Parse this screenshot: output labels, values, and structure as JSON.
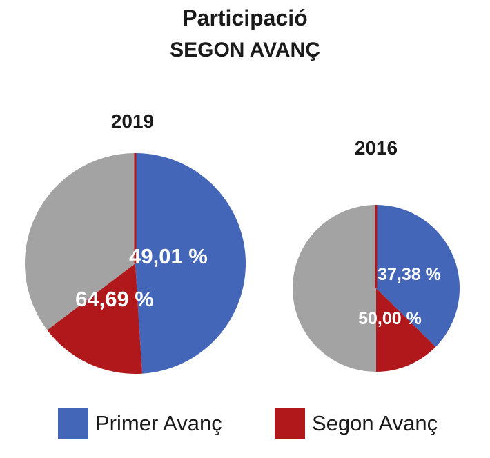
{
  "chart_data": {
    "type": "pie",
    "title": "Participació",
    "subtitle": "SEGON AVANÇ",
    "series_legend": [
      {
        "name": "Primer Avanç",
        "color": "#4466b8"
      },
      {
        "name": "Segon Avanç",
        "color": "#b0181b"
      }
    ],
    "pies": [
      {
        "year": "2019",
        "slices": [
          {
            "series": "Primer Avanç",
            "fraction": 0.4901,
            "label": "49,01 %",
            "color": "#4466b8"
          },
          {
            "series": "Segon Avanç",
            "fraction": 0.1568,
            "label": "64,69 %",
            "color": "#b0181b"
          },
          {
            "series": "remainder",
            "fraction": 0.3531,
            "label": "",
            "color": "#a3a3a3"
          }
        ]
      },
      {
        "year": "2016",
        "slices": [
          {
            "series": "Primer Avanç",
            "fraction": 0.3738,
            "label": "37,38 %",
            "color": "#4466b8"
          },
          {
            "series": "Segon Avanç",
            "fraction": 0.1262,
            "label": "50,00 %",
            "color": "#b0181b"
          },
          {
            "series": "remainder",
            "fraction": 0.5,
            "label": "",
            "color": "#a3a3a3"
          }
        ]
      }
    ]
  }
}
